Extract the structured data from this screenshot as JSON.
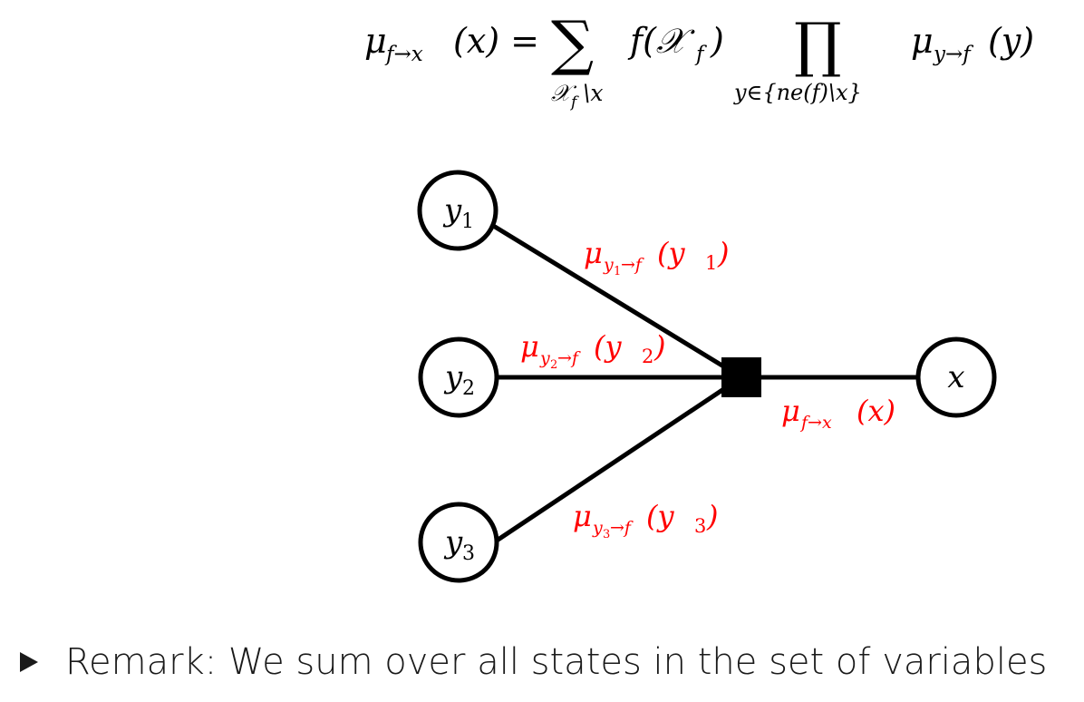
{
  "colors": {
    "message": "#ff0000",
    "ink": "#000000"
  },
  "formula": {
    "lhs_mu": "μ",
    "lhs_sub": "f→x",
    "lhs_arg": "(x) =",
    "sum_symbol": "∑",
    "sum_under_main": "𝒳",
    "sum_under_sub": "f",
    "sum_under_rest": "\\x",
    "f_term": "f(𝒳",
    "f_term_sub": "f",
    "f_term_close": ")",
    "prod_symbol": "∏",
    "prod_under": "y∈{ne(f)\\x}",
    "rhs_mu": "μ",
    "rhs_sub": "y→f",
    "rhs_arg": "(y)"
  },
  "nodes": {
    "y1": {
      "base": "y",
      "sub": "1"
    },
    "y2": {
      "base": "y",
      "sub": "2"
    },
    "y3": {
      "base": "y",
      "sub": "3"
    },
    "x": {
      "base": "x"
    }
  },
  "messages": {
    "m1": {
      "mu": "μ",
      "sub_a": "y",
      "sub_num": "1",
      "sub_b": "→f",
      "arg_open": "(y",
      "arg_num": "1",
      "arg_close": ")"
    },
    "m2": {
      "mu": "μ",
      "sub_a": "y",
      "sub_num": "2",
      "sub_b": "→f",
      "arg_open": "(y",
      "arg_num": "2",
      "arg_close": ")"
    },
    "m3": {
      "mu": "μ",
      "sub_a": "y",
      "sub_num": "3",
      "sub_b": "→f",
      "arg_open": "(y",
      "arg_num": "3",
      "arg_close": ")"
    },
    "mfx": {
      "mu": "μ",
      "sub": "f→x",
      "arg": "(x)"
    }
  },
  "remark": {
    "text": "Remark: We sum over all states in the set of variables"
  }
}
